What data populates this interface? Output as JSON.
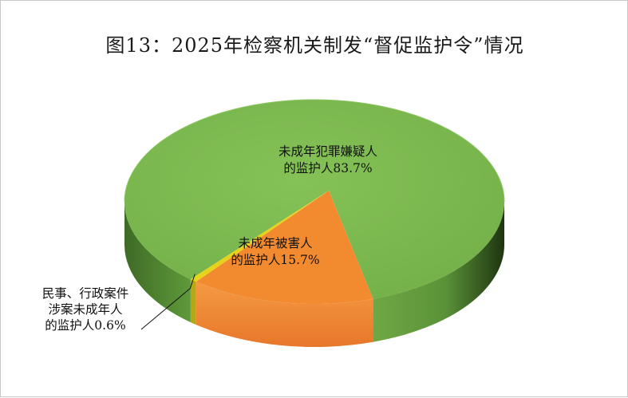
{
  "chart_data": {
    "type": "pie",
    "title": "图13：2025年检察机关制发“督促监护令”情况",
    "slices": [
      {
        "label_lines": [
          "未成年犯罪嫌疑人",
          "的监护人83.7%"
        ],
        "value": 83.7,
        "color": "#7bb84f",
        "side": "#4c7f30"
      },
      {
        "label_lines": [
          "未成年被害人",
          "的监护人15.7%"
        ],
        "value": 15.7,
        "color": "#f28b30",
        "side": "#e9802a"
      },
      {
        "label_lines": [
          "民事、行政案件",
          "涉案未成年人",
          "的监护人0.6%"
        ],
        "value": 0.6,
        "color": "#e7d21c",
        "side": "#b8a614"
      }
    ]
  }
}
